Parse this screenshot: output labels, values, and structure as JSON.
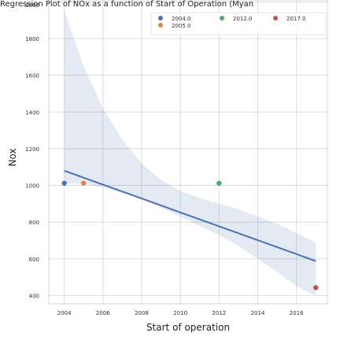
{
  "chart_data": {
    "type": "scatter",
    "title": "Regression Plot of NOx as a function of Start of Operation (Myan",
    "xlabel": "Start of operation",
    "ylabel": "Nox",
    "xlim": [
      2003.2,
      2017.6
    ],
    "ylim": [
      355,
      2010
    ],
    "x_ticks": [
      2004,
      2006,
      2008,
      2010,
      2012,
      2014,
      2016
    ],
    "y_ticks": [
      400,
      600,
      800,
      1000,
      1200,
      1400,
      1600,
      1800,
      2000
    ],
    "grid": true,
    "legend_position": "top-right",
    "series": [
      {
        "name": "2004.0",
        "color": "#4c72b0",
        "points": [
          [
            2004,
            1012
          ]
        ]
      },
      {
        "name": "2005.0",
        "color": "#dd8452",
        "points": [
          [
            2005,
            1012
          ]
        ]
      },
      {
        "name": "2012.0",
        "color": "#55a868",
        "points": [
          [
            2012,
            1012
          ]
        ]
      },
      {
        "name": "2017.0",
        "color": "#c44e52",
        "points": [
          [
            2017,
            443
          ]
        ]
      }
    ],
    "regression": {
      "color": "#4c72b0",
      "band_color": "#4c72b0",
      "line": [
        [
          2004,
          1080
        ],
        [
          2017,
          588
        ]
      ],
      "band_upper": [
        [
          2004,
          1950
        ],
        [
          2005,
          1650
        ],
        [
          2006,
          1420
        ],
        [
          2007,
          1250
        ],
        [
          2008,
          1120
        ],
        [
          2009,
          1030
        ],
        [
          2010,
          970
        ],
        [
          2011,
          930
        ],
        [
          2012,
          900
        ],
        [
          2013,
          870
        ],
        [
          2014,
          830
        ],
        [
          2015,
          790
        ],
        [
          2016,
          740
        ],
        [
          2017,
          690
        ]
      ],
      "band_lower": [
        [
          2017,
          400
        ],
        [
          2016,
          450
        ],
        [
          2015,
          530
        ],
        [
          2014,
          600
        ],
        [
          2013,
          670
        ],
        [
          2012,
          730
        ],
        [
          2011,
          780
        ],
        [
          2010,
          830
        ],
        [
          2009,
          880
        ],
        [
          2008,
          930
        ],
        [
          2007,
          960
        ],
        [
          2006,
          990
        ],
        [
          2005,
          1010
        ],
        [
          2004,
          1010
        ]
      ]
    }
  }
}
